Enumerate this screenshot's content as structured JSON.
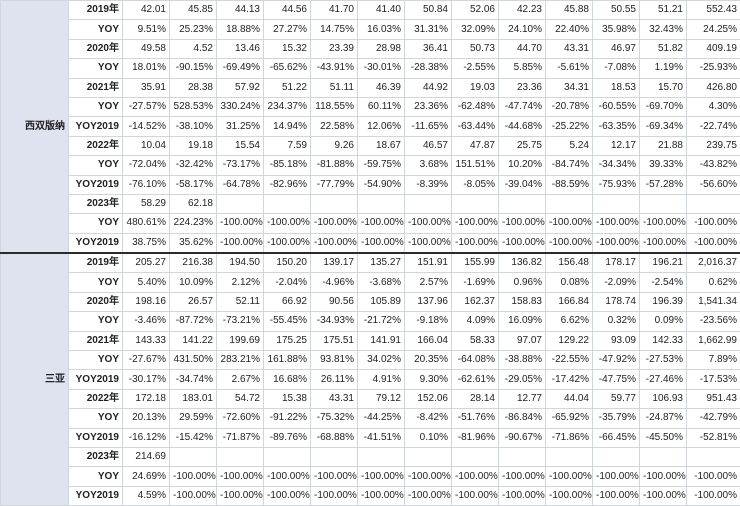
{
  "regions": [
    {
      "name": "西双版纳",
      "rows": [
        {
          "label": "2019年",
          "values": [
            "42.01",
            "45.85",
            "44.13",
            "44.56",
            "41.70",
            "41.40",
            "50.84",
            "52.06",
            "42.23",
            "45.88",
            "50.55",
            "51.21",
            "552.43"
          ]
        },
        {
          "label": "YOY",
          "values": [
            "9.51%",
            "25.23%",
            "18.88%",
            "27.27%",
            "14.75%",
            "16.03%",
            "31.31%",
            "32.09%",
            "24.10%",
            "22.40%",
            "35.98%",
            "32.43%",
            "24.25%"
          ]
        },
        {
          "label": "2020年",
          "values": [
            "49.58",
            "4.52",
            "13.46",
            "15.32",
            "23.39",
            "28.98",
            "36.41",
            "50.73",
            "44.70",
            "43.31",
            "46.97",
            "51.82",
            "409.19"
          ]
        },
        {
          "label": "YOY",
          "values": [
            "18.01%",
            "-90.15%",
            "-69.49%",
            "-65.62%",
            "-43.91%",
            "-30.01%",
            "-28.38%",
            "-2.55%",
            "5.85%",
            "-5.61%",
            "-7.08%",
            "1.19%",
            "-25.93%"
          ]
        },
        {
          "label": "2021年",
          "values": [
            "35.91",
            "28.38",
            "57.92",
            "51.22",
            "51.11",
            "46.39",
            "44.92",
            "19.03",
            "23.36",
            "34.31",
            "18.53",
            "15.70",
            "426.80"
          ]
        },
        {
          "label": "YOY",
          "values": [
            "-27.57%",
            "528.53%",
            "330.24%",
            "234.37%",
            "118.55%",
            "60.11%",
            "23.36%",
            "-62.48%",
            "-47.74%",
            "-20.78%",
            "-60.55%",
            "-69.70%",
            "4.30%"
          ]
        },
        {
          "label": "YOY2019",
          "values": [
            "-14.52%",
            "-38.10%",
            "31.25%",
            "14.94%",
            "22.58%",
            "12.06%",
            "-11.65%",
            "-63.44%",
            "-44.68%",
            "-25.22%",
            "-63.35%",
            "-69.34%",
            "-22.74%"
          ]
        },
        {
          "label": "2022年",
          "values": [
            "10.04",
            "19.18",
            "15.54",
            "7.59",
            "9.26",
            "18.67",
            "46.57",
            "47.87",
            "25.75",
            "5.24",
            "12.17",
            "21.88",
            "239.75"
          ]
        },
        {
          "label": "YOY",
          "values": [
            "-72.04%",
            "-32.42%",
            "-73.17%",
            "-85.18%",
            "-81.88%",
            "-59.75%",
            "3.68%",
            "151.51%",
            "10.20%",
            "-84.74%",
            "-34.34%",
            "39.33%",
            "-43.82%"
          ]
        },
        {
          "label": "YOY2019",
          "values": [
            "-76.10%",
            "-58.17%",
            "-64.78%",
            "-82.96%",
            "-77.79%",
            "-54.90%",
            "-8.39%",
            "-8.05%",
            "-39.04%",
            "-88.59%",
            "-75.93%",
            "-57.28%",
            "-56.60%"
          ]
        },
        {
          "label": "2023年",
          "values": [
            "58.29",
            "62.18",
            "",
            "",
            "",
            "",
            "",
            "",
            "",
            "",
            "",
            "",
            ""
          ]
        },
        {
          "label": "YOY",
          "values": [
            "480.61%",
            "224.23%",
            "-100.00%",
            "-100.00%",
            "-100.00%",
            "-100.00%",
            "-100.00%",
            "-100.00%",
            "-100.00%",
            "-100.00%",
            "-100.00%",
            "-100.00%",
            "-100.00%"
          ]
        },
        {
          "label": "YOY2019",
          "values": [
            "38.75%",
            "35.62%",
            "-100.00%",
            "-100.00%",
            "-100.00%",
            "-100.00%",
            "-100.00%",
            "-100.00%",
            "-100.00%",
            "-100.00%",
            "-100.00%",
            "-100.00%",
            "-100.00%"
          ]
        }
      ]
    },
    {
      "name": "三亚",
      "rows": [
        {
          "label": "2019年",
          "values": [
            "205.27",
            "216.38",
            "194.50",
            "150.20",
            "139.17",
            "135.27",
            "151.91",
            "155.99",
            "136.82",
            "156.48",
            "178.17",
            "196.21",
            "2,016.37"
          ]
        },
        {
          "label": "YOY",
          "values": [
            "5.40%",
            "10.09%",
            "2.12%",
            "-2.04%",
            "-4.96%",
            "-3.68%",
            "2.57%",
            "-1.69%",
            "0.96%",
            "0.08%",
            "-2.09%",
            "-2.54%",
            "0.62%"
          ]
        },
        {
          "label": "2020年",
          "values": [
            "198.16",
            "26.57",
            "52.11",
            "66.92",
            "90.56",
            "105.89",
            "137.96",
            "162.37",
            "158.83",
            "166.84",
            "178.74",
            "196.39",
            "1,541.34"
          ]
        },
        {
          "label": "YOY",
          "values": [
            "-3.46%",
            "-87.72%",
            "-73.21%",
            "-55.45%",
            "-34.93%",
            "-21.72%",
            "-9.18%",
            "4.09%",
            "16.09%",
            "6.62%",
            "0.32%",
            "0.09%",
            "-23.56%"
          ]
        },
        {
          "label": "2021年",
          "values": [
            "143.33",
            "141.22",
            "199.69",
            "175.25",
            "175.51",
            "141.91",
            "166.04",
            "58.33",
            "97.07",
            "129.22",
            "93.09",
            "142.33",
            "1,662.99"
          ]
        },
        {
          "label": "YOY",
          "values": [
            "-27.67%",
            "431.50%",
            "283.21%",
            "161.88%",
            "93.81%",
            "34.02%",
            "20.35%",
            "-64.08%",
            "-38.88%",
            "-22.55%",
            "-47.92%",
            "-27.53%",
            "7.89%"
          ]
        },
        {
          "label": "YOY2019",
          "values": [
            "-30.17%",
            "-34.74%",
            "2.67%",
            "16.68%",
            "26.11%",
            "4.91%",
            "9.30%",
            "-62.61%",
            "-29.05%",
            "-17.42%",
            "-47.75%",
            "-27.46%",
            "-17.53%"
          ]
        },
        {
          "label": "2022年",
          "values": [
            "172.18",
            "183.01",
            "54.72",
            "15.38",
            "43.31",
            "79.12",
            "152.06",
            "28.14",
            "12.77",
            "44.04",
            "59.77",
            "106.93",
            "951.43"
          ]
        },
        {
          "label": "YOY",
          "values": [
            "20.13%",
            "29.59%",
            "-72.60%",
            "-91.22%",
            "-75.32%",
            "-44.25%",
            "-8.42%",
            "-51.76%",
            "-86.84%",
            "-65.92%",
            "-35.79%",
            "-24.87%",
            "-42.79%"
          ]
        },
        {
          "label": "YOY2019",
          "values": [
            "-16.12%",
            "-15.42%",
            "-71.87%",
            "-89.76%",
            "-68.88%",
            "-41.51%",
            "0.10%",
            "-81.96%",
            "-90.67%",
            "-71.86%",
            "-66.45%",
            "-45.50%",
            "-52.81%"
          ]
        },
        {
          "label": "2023年",
          "values": [
            "214.69",
            "",
            "",
            "",
            "",
            "",
            "",
            "",
            "",
            "",
            "",
            "",
            ""
          ]
        },
        {
          "label": "YOY",
          "values": [
            "24.69%",
            "-100.00%",
            "-100.00%",
            "-100.00%",
            "-100.00%",
            "-100.00%",
            "-100.00%",
            "-100.00%",
            "-100.00%",
            "-100.00%",
            "-100.00%",
            "-100.00%",
            "-100.00%"
          ]
        },
        {
          "label": "YOY2019",
          "values": [
            "4.59%",
            "-100.00%",
            "-100.00%",
            "-100.00%",
            "-100.00%",
            "-100.00%",
            "-100.00%",
            "-100.00%",
            "-100.00%",
            "-100.00%",
            "-100.00%",
            "-100.00%",
            "-100.00%"
          ]
        }
      ]
    }
  ],
  "colors": {
    "negative": "#e4232e",
    "region_bg": "#dfe3f0",
    "border": "#d0d5de"
  }
}
